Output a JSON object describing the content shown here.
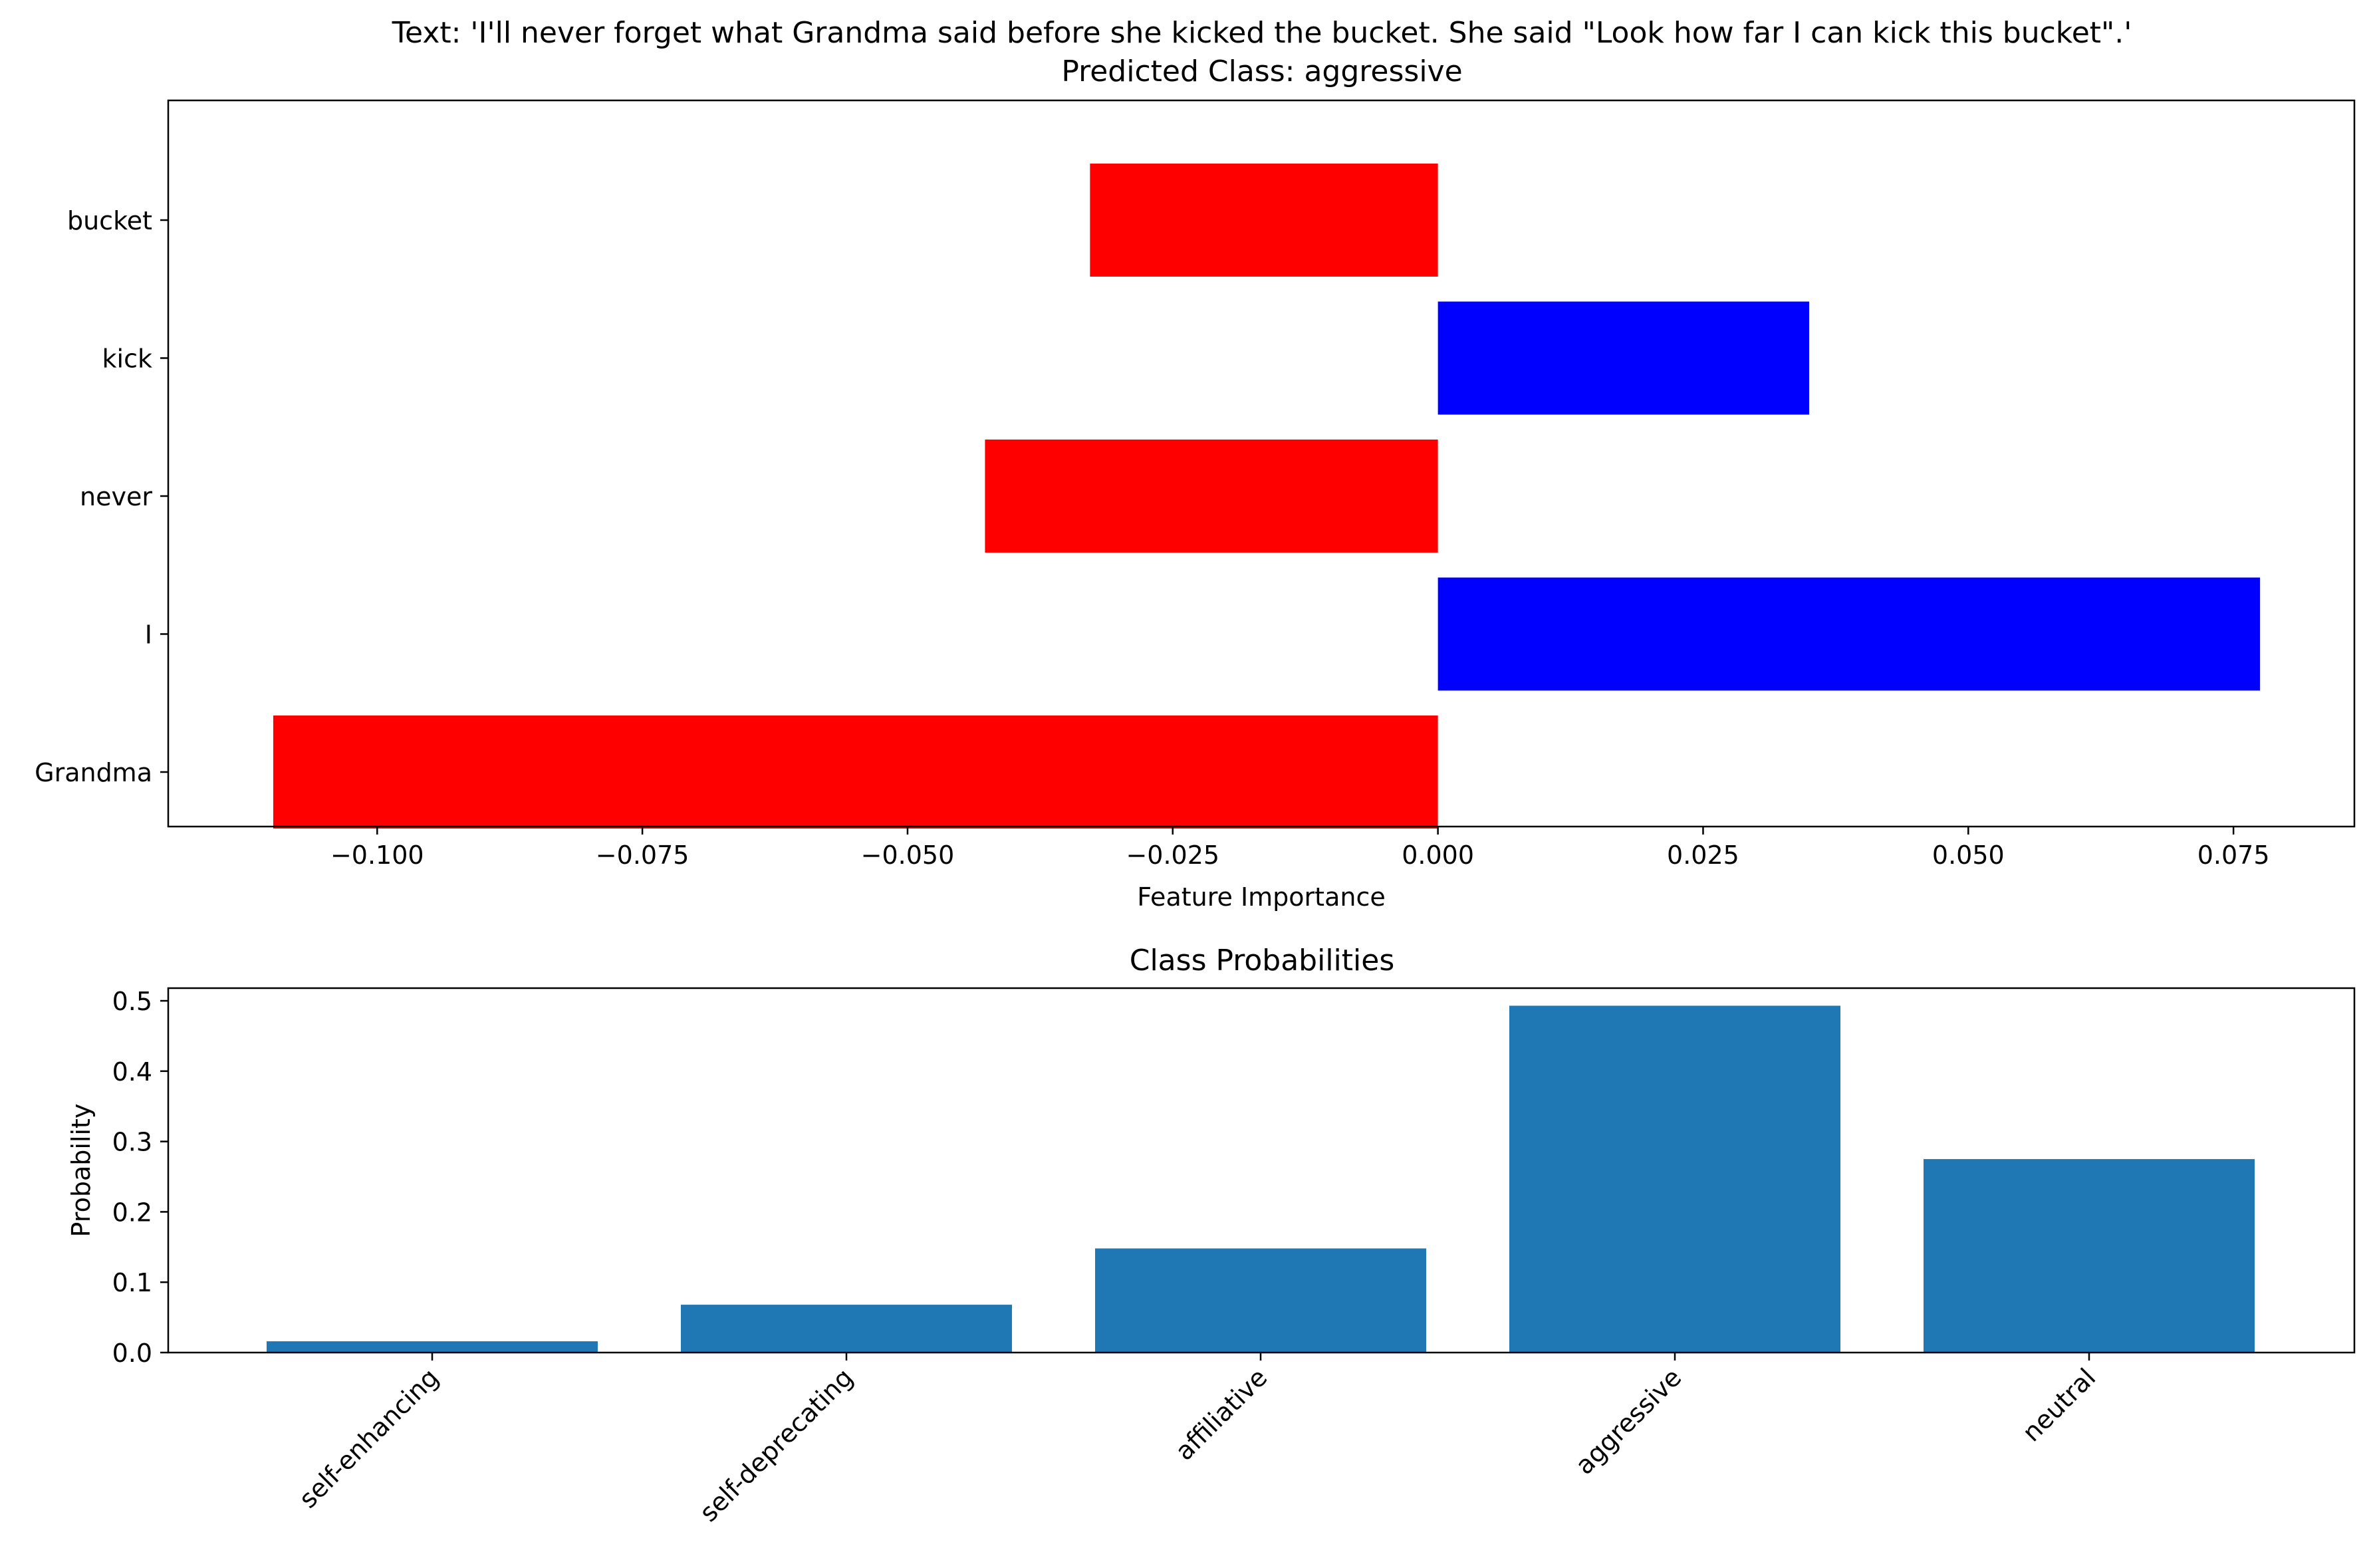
{
  "chart_data": [
    {
      "type": "bar",
      "orientation": "horizontal",
      "title": "Text: 'I'll never forget what Grandma said before she kicked the bucket. She said \"Look how far I can kick this bucket\".'",
      "subtitle": "Predicted Class: aggressive",
      "xlabel": "Feature Importance",
      "ylabel": "",
      "categories": [
        "Grandma",
        "I",
        "never",
        "kick",
        "bucket"
      ],
      "values": [
        -0.1098,
        0.0775,
        -0.0427,
        0.035,
        -0.0328
      ],
      "xlim": [
        -0.1197,
        0.0864
      ],
      "xticks": [
        -0.1,
        -0.075,
        -0.05,
        -0.025,
        0.0,
        0.025,
        0.05,
        0.075
      ],
      "xtick_labels": [
        "−0.100",
        "−0.075",
        "−0.050",
        "−0.025",
        "0.000",
        "0.025",
        "0.050",
        "0.075"
      ],
      "positive_color": "#0000ff",
      "negative_color": "#ff0000",
      "grid": false,
      "legend": "none"
    },
    {
      "type": "bar",
      "title": "Class Probabilities",
      "xlabel": "",
      "ylabel": "Probability",
      "categories": [
        "self-enhancing",
        "self-deprecating",
        "affiliative",
        "aggressive",
        "neutral"
      ],
      "values": [
        0.016,
        0.068,
        0.148,
        0.493,
        0.275
      ],
      "ylim": [
        0,
        0.518
      ],
      "yticks": [
        0.0,
        0.1,
        0.2,
        0.3,
        0.4,
        0.5
      ],
      "ytick_labels": [
        "0.0",
        "0.1",
        "0.2",
        "0.3",
        "0.4",
        "0.5"
      ],
      "bar_color": "#1f77b4",
      "grid": false,
      "legend": "none"
    }
  ]
}
